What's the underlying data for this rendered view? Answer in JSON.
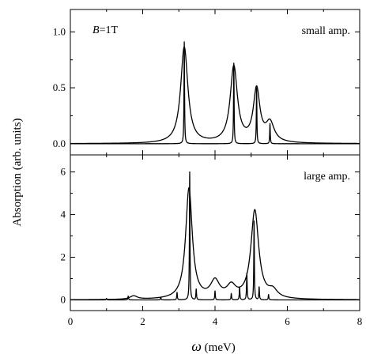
{
  "chart_data": {
    "type": "line",
    "xlabel": "ω (meV)",
    "ylabel": "Absorption (arb. units)",
    "xlim": [
      0,
      8
    ],
    "x_ticks": [
      "0",
      "2",
      "4",
      "6",
      "8"
    ],
    "shared_x_axis": true,
    "panels": [
      {
        "id": "top",
        "annotation_left": "B=1T",
        "annotation_left_parts": {
          "italic": "B",
          "rest": "=1T"
        },
        "annotation_right": "small amp.",
        "ylim": [
          -0.1,
          1.2
        ],
        "y_ticks": [
          "0.0",
          "0.5",
          "1.0"
        ],
        "series": [
          {
            "style": "broad",
            "peaks": [
              {
                "center": 3.15,
                "height": 0.86,
                "width": 0.24
              },
              {
                "center": 4.52,
                "height": 0.68,
                "width": 0.24
              },
              {
                "center": 5.15,
                "height": 0.47,
                "width": 0.22
              },
              {
                "center": 5.52,
                "height": 0.17,
                "width": 0.28
              }
            ]
          },
          {
            "style": "narrow",
            "peaks": [
              {
                "center": 3.15,
                "height": 0.91,
                "width": 0.018
              },
              {
                "center": 4.52,
                "height": 0.72,
                "width": 0.018
              },
              {
                "center": 5.15,
                "height": 0.5,
                "width": 0.018
              },
              {
                "center": 5.52,
                "height": 0.18,
                "width": 0.018
              }
            ]
          }
        ]
      },
      {
        "id": "bottom",
        "annotation_right": "large amp.",
        "ylim": [
          -0.5,
          6.8
        ],
        "y_ticks": [
          "0",
          "2",
          "4",
          "6"
        ],
        "series": [
          {
            "style": "broad",
            "peaks": [
              {
                "center": 1.75,
                "height": 0.16,
                "width": 0.25
              },
              {
                "center": 3.28,
                "height": 5.2,
                "width": 0.22
              },
              {
                "center": 4.0,
                "height": 0.8,
                "width": 0.3
              },
              {
                "center": 4.45,
                "height": 0.55,
                "width": 0.3
              },
              {
                "center": 5.1,
                "height": 4.15,
                "width": 0.26
              },
              {
                "center": 5.6,
                "height": 0.35,
                "width": 0.3
              }
            ]
          },
          {
            "style": "narrow",
            "peaks": [
              {
                "center": 1.0,
                "height": 0.07,
                "width": 0.02
              },
              {
                "center": 1.6,
                "height": 0.18,
                "width": 0.02
              },
              {
                "center": 2.5,
                "height": 0.12,
                "width": 0.02
              },
              {
                "center": 2.95,
                "height": 0.35,
                "width": 0.02
              },
              {
                "center": 3.3,
                "height": 6.0,
                "width": 0.018
              },
              {
                "center": 3.48,
                "height": 0.5,
                "width": 0.02
              },
              {
                "center": 4.0,
                "height": 0.42,
                "width": 0.02
              },
              {
                "center": 4.45,
                "height": 0.3,
                "width": 0.02
              },
              {
                "center": 4.68,
                "height": 0.6,
                "width": 0.02
              },
              {
                "center": 4.88,
                "height": 1.25,
                "width": 0.02
              },
              {
                "center": 5.08,
                "height": 3.7,
                "width": 0.018
              },
              {
                "center": 5.22,
                "height": 0.6,
                "width": 0.02
              },
              {
                "center": 5.48,
                "height": 0.25,
                "width": 0.02
              }
            ]
          }
        ]
      }
    ]
  }
}
